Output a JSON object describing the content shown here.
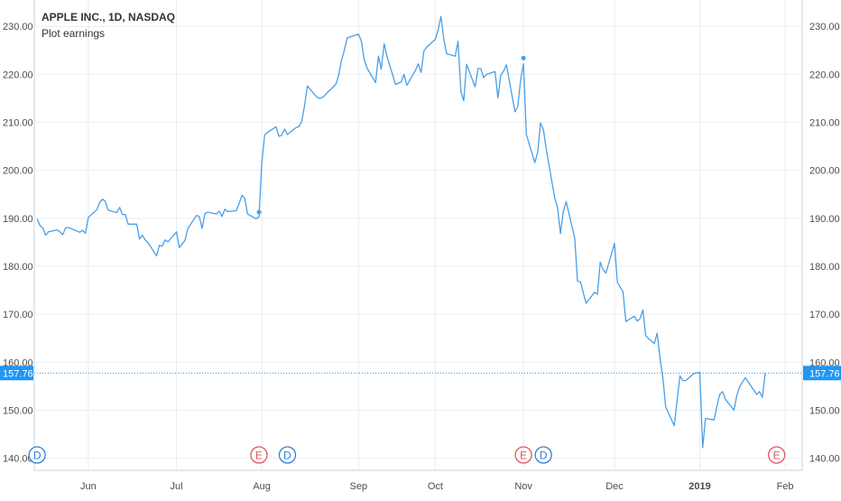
{
  "chart_data": {
    "type": "line",
    "title": "APPLE INC., 1D, NASDAQ",
    "subtitle": "Plot earnings",
    "xlabel": "",
    "ylabel": "",
    "series": [
      {
        "x": [
          "2018-05-14",
          "2018-05-15",
          "2018-05-16",
          "2018-05-17",
          "2018-05-18",
          "2018-05-21",
          "2018-05-22",
          "2018-05-23",
          "2018-05-24",
          "2018-05-25",
          "2018-05-29",
          "2018-05-30",
          "2018-05-31",
          "2018-06-01",
          "2018-06-04",
          "2018-06-05",
          "2018-06-06",
          "2018-06-07",
          "2018-06-08",
          "2018-06-11",
          "2018-06-12",
          "2018-06-13",
          "2018-06-14",
          "2018-06-15",
          "2018-06-18",
          "2018-06-19",
          "2018-06-20",
          "2018-06-21",
          "2018-06-22",
          "2018-06-25",
          "2018-06-26",
          "2018-06-27",
          "2018-06-28",
          "2018-06-29",
          "2018-07-02",
          "2018-07-03",
          "2018-07-05",
          "2018-07-06",
          "2018-07-09",
          "2018-07-10",
          "2018-07-11",
          "2018-07-12",
          "2018-07-13",
          "2018-07-16",
          "2018-07-17",
          "2018-07-18",
          "2018-07-19",
          "2018-07-20",
          "2018-07-23",
          "2018-07-24",
          "2018-07-25",
          "2018-07-26",
          "2018-07-27",
          "2018-07-30",
          "2018-07-31",
          "2018-08-01",
          "2018-08-02",
          "2018-08-03",
          "2018-08-06",
          "2018-08-07",
          "2018-08-08",
          "2018-08-09",
          "2018-08-10",
          "2018-08-13",
          "2018-08-14",
          "2018-08-15",
          "2018-08-16",
          "2018-08-17",
          "2018-08-20",
          "2018-08-21",
          "2018-08-22",
          "2018-08-23",
          "2018-08-24",
          "2018-08-27",
          "2018-08-28",
          "2018-08-29",
          "2018-08-30",
          "2018-08-31",
          "2018-09-04",
          "2018-09-05",
          "2018-09-06",
          "2018-09-07",
          "2018-09-10",
          "2018-09-11",
          "2018-09-12",
          "2018-09-13",
          "2018-09-14",
          "2018-09-17",
          "2018-09-18",
          "2018-09-19",
          "2018-09-20",
          "2018-09-21",
          "2018-09-24",
          "2018-09-25",
          "2018-09-26",
          "2018-09-27",
          "2018-09-28",
          "2018-10-01",
          "2018-10-02",
          "2018-10-03",
          "2018-10-04",
          "2018-10-05",
          "2018-10-08",
          "2018-10-09",
          "2018-10-10",
          "2018-10-11",
          "2018-10-12",
          "2018-10-15",
          "2018-10-16",
          "2018-10-17",
          "2018-10-18",
          "2018-10-19",
          "2018-10-22",
          "2018-10-23",
          "2018-10-24",
          "2018-10-25",
          "2018-10-26",
          "2018-10-29",
          "2018-10-30",
          "2018-10-31",
          "2018-11-01",
          "2018-11-02",
          "2018-11-05",
          "2018-11-06",
          "2018-11-07",
          "2018-11-08",
          "2018-11-09",
          "2018-11-12",
          "2018-11-13",
          "2018-11-14",
          "2018-11-15",
          "2018-11-16",
          "2018-11-19",
          "2018-11-20",
          "2018-11-21",
          "2018-11-23",
          "2018-11-26",
          "2018-11-27",
          "2018-11-28",
          "2018-11-29",
          "2018-11-30",
          "2018-12-03",
          "2018-12-04",
          "2018-12-06",
          "2018-12-07",
          "2018-12-10",
          "2018-12-11",
          "2018-12-12",
          "2018-12-13",
          "2018-12-14",
          "2018-12-17",
          "2018-12-18",
          "2018-12-19",
          "2018-12-20",
          "2018-12-21",
          "2018-12-24",
          "2018-12-26",
          "2018-12-27",
          "2018-12-28",
          "2018-12-31",
          "2019-01-02",
          "2019-01-03",
          "2019-01-04",
          "2019-01-07",
          "2019-01-08",
          "2019-01-09",
          "2019-01-10",
          "2019-01-11",
          "2019-01-14",
          "2019-01-15",
          "2019-01-16",
          "2019-01-17",
          "2019-01-18",
          "2019-01-22",
          "2019-01-23",
          "2019-01-24",
          "2019-01-25"
        ],
        "values": [
          189.9,
          188.5,
          188.0,
          186.5,
          187.2,
          187.6,
          187.2,
          186.6,
          188.0,
          188.1,
          187.1,
          187.5,
          186.9,
          190.2,
          191.8,
          193.3,
          194.0,
          193.5,
          191.7,
          191.2,
          192.3,
          190.8,
          190.8,
          188.8,
          188.8,
          185.7,
          186.5,
          185.5,
          184.9,
          182.2,
          184.4,
          184.2,
          185.5,
          185.1,
          187.2,
          183.9,
          185.4,
          187.9,
          190.6,
          190.4,
          187.9,
          191.0,
          191.3,
          190.9,
          191.5,
          190.4,
          191.9,
          191.4,
          191.6,
          193.0,
          194.8,
          194.2,
          190.9,
          189.9,
          190.3,
          201.5,
          207.4,
          207.9,
          209.1,
          207.1,
          207.3,
          208.6,
          207.5,
          208.9,
          209.1,
          210.2,
          213.3,
          217.6,
          215.5,
          215.0,
          215.1,
          215.5,
          216.2,
          217.9,
          219.7,
          222.9,
          225.0,
          227.6,
          228.4,
          226.9,
          223.1,
          221.3,
          218.3,
          223.8,
          221.1,
          226.4,
          223.8,
          217.9,
          218.2,
          218.4,
          220.0,
          217.7,
          220.8,
          222.2,
          220.4,
          224.9,
          225.7,
          227.3,
          229.3,
          232.1,
          227.3,
          224.3,
          223.8,
          226.9,
          216.4,
          214.5,
          222.1,
          217.4,
          221.2,
          221.2,
          219.3,
          220.0,
          220.6,
          215.1,
          219.8,
          220.7,
          222.0,
          212.2,
          213.3,
          218.9,
          222.2,
          207.5,
          201.6,
          203.8,
          209.9,
          208.5,
          204.5,
          194.2,
          192.2,
          186.8,
          191.4,
          193.5,
          185.9,
          176.9,
          176.8,
          172.3,
          174.6,
          174.2,
          180.9,
          179.3,
          178.6,
          184.8,
          176.7,
          174.7,
          168.5,
          169.6,
          168.6,
          169.1,
          170.9,
          165.5,
          163.9,
          166.1,
          160.9,
          156.8,
          150.7,
          146.8,
          157.2,
          156.2,
          156.2,
          157.7,
          157.9,
          142.2,
          148.3,
          148.0,
          150.8,
          153.3,
          153.9,
          152.3,
          150.0,
          153.1,
          154.9,
          155.9,
          156.8,
          153.3,
          153.9,
          152.7,
          157.8
        ]
      }
    ],
    "ylim": [
      137.5,
      235.5
    ],
    "y_ticks": [
      "140.00",
      "150.00",
      "160.00",
      "170.00",
      "180.00",
      "190.00",
      "200.00",
      "210.00",
      "220.00",
      "230.00"
    ],
    "x_ticks": [
      {
        "date": "2018-06-01",
        "label": "Jun"
      },
      {
        "date": "2018-07-02",
        "label": "Jul"
      },
      {
        "date": "2018-08-01",
        "label": "Aug"
      },
      {
        "date": "2018-09-04",
        "label": "Sep"
      },
      {
        "date": "2018-10-01",
        "label": "Oct"
      },
      {
        "date": "2018-11-01",
        "label": "Nov"
      },
      {
        "date": "2018-12-03",
        "label": "Dec"
      },
      {
        "date": "2019-01-02",
        "label": "2019"
      },
      {
        "date": "2019-02-01",
        "label": "Feb"
      }
    ],
    "last_price": {
      "value": 157.76,
      "label": "157.76"
    },
    "markers": [
      {
        "date": "2018-05-14",
        "letter": "D",
        "kind": "dividend"
      },
      {
        "date": "2018-07-31",
        "letter": "E",
        "kind": "earnings"
      },
      {
        "date": "2018-08-10",
        "letter": "D",
        "kind": "dividend"
      },
      {
        "date": "2018-11-01",
        "letter": "E",
        "kind": "earnings"
      },
      {
        "date": "2018-11-08",
        "letter": "D",
        "kind": "dividend"
      },
      {
        "date": "2019-01-29",
        "letter": "E",
        "kind": "earnings"
      }
    ],
    "earnings_points": [
      {
        "date": "2018-07-31",
        "value": 191.3
      },
      {
        "date": "2018-11-01",
        "value": 223.4
      }
    ],
    "colors": {
      "line": "#4a9fe8",
      "grid": "#e6eef3",
      "earnings": "#e0535d",
      "dividend": "#2c7fd6",
      "price_label_bg": "#2196f3",
      "axis_text": "#4d4d4d"
    },
    "grid": true
  }
}
